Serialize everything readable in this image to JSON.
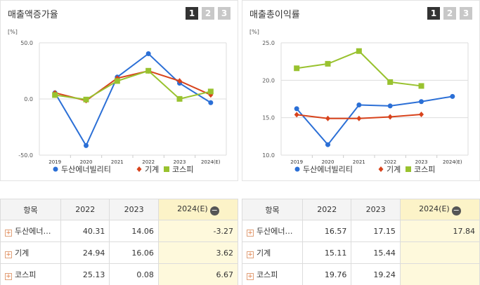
{
  "colors": {
    "doosan": "#2b6fd6",
    "machinery": "#d8431c",
    "kospi": "#99c22f"
  },
  "legend": [
    "두산에너빌리티",
    "기계",
    "코스피"
  ],
  "charts": [
    {
      "title": "매출액증가율",
      "pages": [
        "1",
        "2",
        "3"
      ],
      "unit": "[%]",
      "yticks": [
        "50.0",
        "0.0",
        "-50.0"
      ]
    },
    {
      "title": "매출총이익률",
      "pages": [
        "1",
        "2",
        "3"
      ],
      "unit": "[%]",
      "yticks": [
        "25.0",
        "20.0",
        "15.0",
        "10.0"
      ]
    }
  ],
  "chart_data": [
    {
      "type": "line",
      "title": "매출액증가율",
      "ylabel": "[%]",
      "categories": [
        "2019",
        "2020",
        "2021",
        "2022",
        "2023",
        "2024(E)"
      ],
      "ylim": [
        -50,
        50
      ],
      "series": [
        {
          "name": "두산에너빌리티",
          "values": [
            5.5,
            -41.5,
            19.5,
            40.31,
            14.06,
            -3.27
          ]
        },
        {
          "name": "기계",
          "values": [
            5.5,
            -1.5,
            18.5,
            24.94,
            16.06,
            3.62
          ]
        },
        {
          "name": "코스피",
          "values": [
            3.5,
            -0.5,
            16.0,
            25.13,
            0.08,
            6.67
          ]
        }
      ]
    },
    {
      "type": "line",
      "title": "매출총이익률",
      "ylabel": "[%]",
      "categories": [
        "2019",
        "2020",
        "2021",
        "2022",
        "2023",
        "2024(E)"
      ],
      "ylim": [
        10,
        25
      ],
      "series": [
        {
          "name": "두산에너빌리티",
          "values": [
            16.2,
            11.4,
            16.7,
            16.57,
            17.15,
            17.84
          ]
        },
        {
          "name": "기계",
          "values": [
            15.4,
            14.9,
            14.9,
            15.11,
            15.44,
            null
          ]
        },
        {
          "name": "코스피",
          "values": [
            21.6,
            22.2,
            23.9,
            19.76,
            19.24,
            null
          ]
        }
      ]
    }
  ],
  "tables": [
    {
      "headers": [
        "항목",
        "2022",
        "2023",
        "2024(E)"
      ],
      "rows": [
        {
          "name": "두산에너…",
          "v2022": "40.31",
          "v2023": "14.06",
          "v2024": "-3.27"
        },
        {
          "name": "기계",
          "v2022": "24.94",
          "v2023": "16.06",
          "v2024": "3.62"
        },
        {
          "name": "코스피",
          "v2022": "25.13",
          "v2023": "0.08",
          "v2024": "6.67"
        }
      ]
    },
    {
      "headers": [
        "항목",
        "2022",
        "2023",
        "2024(E)"
      ],
      "rows": [
        {
          "name": "두산에너…",
          "v2022": "16.57",
          "v2023": "17.15",
          "v2024": "17.84"
        },
        {
          "name": "기계",
          "v2022": "15.11",
          "v2023": "15.44",
          "v2024": ""
        },
        {
          "name": "코스피",
          "v2022": "19.76",
          "v2023": "19.24",
          "v2024": ""
        }
      ]
    }
  ]
}
